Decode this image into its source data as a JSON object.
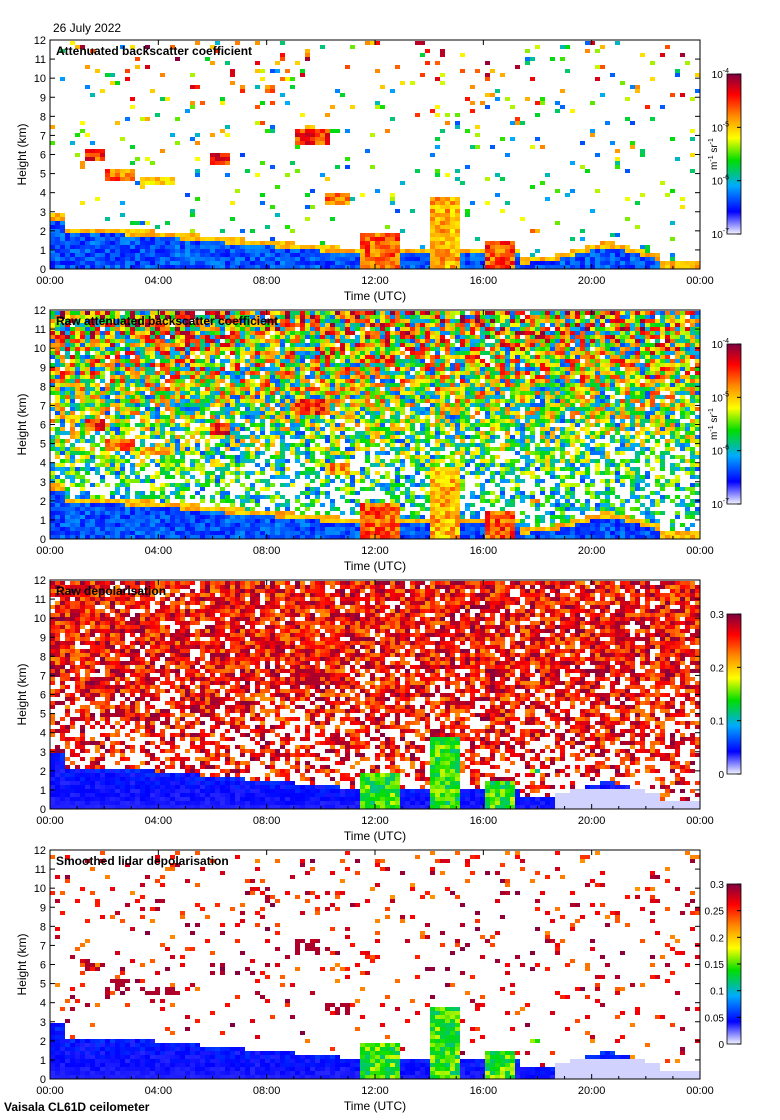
{
  "date": "26 July 2022",
  "footer": "Vaisala CL61D ceilometer",
  "chart_data": [
    {
      "type": "heatmap",
      "title": "Attenuated backscatter coefficient",
      "xlabel": "Time (UTC)",
      "ylabel": "Height (km)",
      "x_ticks": [
        "00:00",
        "04:00",
        "08:00",
        "12:00",
        "16:00",
        "20:00",
        "00:00"
      ],
      "y_ticks": [
        0,
        1,
        2,
        3,
        4,
        5,
        6,
        7,
        8,
        9,
        10,
        11,
        12
      ],
      "ylim": [
        0,
        12
      ],
      "colorbar": {
        "scale": "log",
        "min_exp": -7,
        "max_exp": -4,
        "ticks": [
          {
            "base": "10",
            "exp": "-7",
            "v": -7
          },
          {
            "base": "10",
            "exp": "-6",
            "v": -6
          },
          {
            "base": "10",
            "exp": "-5",
            "v": -5
          },
          {
            "base": "10",
            "exp": "-4",
            "v": -4
          }
        ],
        "unit_parts": [
          "m",
          "-1",
          " sr",
          "-1"
        ]
      },
      "features": {
        "noise": 0.08,
        "boundary_layer_km": 2.1,
        "cloud_events": [
          "01:00-02:00 ~6km",
          "06:00 ~6km",
          "09:30-10:30 ~7km",
          "11:00-12:30 low cloud",
          "14:00-15:00 deep precipitation",
          "16:30-17:00 low cloud"
        ]
      }
    },
    {
      "type": "heatmap",
      "title": "Raw attenuated backscatter coefficient",
      "xlabel": "Time (UTC)",
      "ylabel": "Height (km)",
      "x_ticks": [
        "00:00",
        "04:00",
        "08:00",
        "12:00",
        "16:00",
        "20:00",
        "00:00"
      ],
      "y_ticks": [
        0,
        1,
        2,
        3,
        4,
        5,
        6,
        7,
        8,
        9,
        10,
        11,
        12
      ],
      "ylim": [
        0,
        12
      ],
      "colorbar": {
        "scale": "log",
        "min_exp": -7,
        "max_exp": -4,
        "ticks": [
          {
            "base": "10",
            "exp": "-7",
            "v": -7
          },
          {
            "base": "10",
            "exp": "-6",
            "v": -6
          },
          {
            "base": "10",
            "exp": "-5",
            "v": -5
          },
          {
            "base": "10",
            "exp": "-4",
            "v": -4
          }
        ],
        "unit_parts": [
          "m",
          "-1",
          " sr",
          "-1"
        ]
      },
      "features": {
        "noise": 0.95,
        "boundary_layer_km": 2.1
      }
    },
    {
      "type": "heatmap",
      "title": "Raw depolarisation",
      "xlabel": "Time (UTC)",
      "ylabel": "Height (km)",
      "x_ticks": [
        "00:00",
        "04:00",
        "08:00",
        "12:00",
        "16:00",
        "20:00",
        "00:00"
      ],
      "y_ticks": [
        0,
        1,
        2,
        3,
        4,
        5,
        6,
        7,
        8,
        9,
        10,
        11,
        12
      ],
      "ylim": [
        0,
        12
      ],
      "colorbar": {
        "scale": "linear",
        "min": 0,
        "max": 0.3,
        "ticks": [
          {
            "label": "0",
            "v": 0
          },
          {
            "label": "0.1",
            "v": 0.1
          },
          {
            "label": "0.2",
            "v": 0.2
          },
          {
            "label": "0.3",
            "v": 0.3
          }
        ]
      },
      "features": {
        "noise": 0.85
      }
    },
    {
      "type": "heatmap",
      "title": "Smoothed lidar depolarisation",
      "xlabel": "Time (UTC)",
      "ylabel": "Height (km)",
      "x_ticks": [
        "00:00",
        "04:00",
        "08:00",
        "12:00",
        "16:00",
        "20:00",
        "00:00"
      ],
      "y_ticks": [
        0,
        1,
        2,
        3,
        4,
        5,
        6,
        7,
        8,
        9,
        10,
        11,
        12
      ],
      "ylim": [
        0,
        12
      ],
      "colorbar": {
        "scale": "linear",
        "min": 0,
        "max": 0.3,
        "ticks": [
          {
            "label": "0",
            "v": 0
          },
          {
            "label": "0.05",
            "v": 0.05
          },
          {
            "label": "0.1",
            "v": 0.1
          },
          {
            "label": "0.15",
            "v": 0.15
          },
          {
            "label": "0.2",
            "v": 0.2
          },
          {
            "label": "0.25",
            "v": 0.25
          },
          {
            "label": "0.3",
            "v": 0.3
          }
        ]
      },
      "features": {
        "noise": 0.1
      }
    }
  ],
  "colors": {
    "colormap": [
      "#f4f4ff",
      "#0000ff",
      "#00aaff",
      "#00dd00",
      "#ffff00",
      "#ff8800",
      "#ff0000",
      "#800040"
    ],
    "axis": "#000000",
    "background": "#ffffff"
  }
}
